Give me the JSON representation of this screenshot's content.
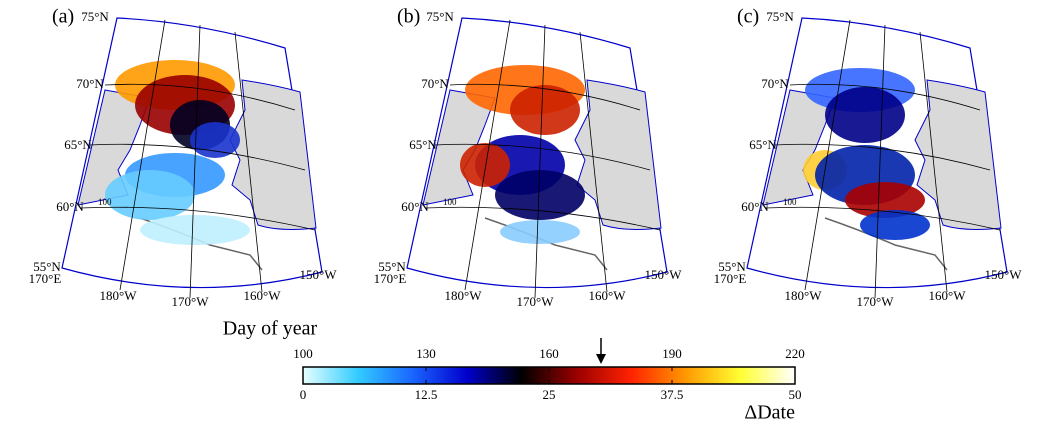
{
  "panels": [
    {
      "label": "(a)"
    },
    {
      "label": "(b)"
    },
    {
      "label": "(c)"
    }
  ],
  "map": {
    "lat_labels": [
      "75°N",
      "70°N",
      "65°N",
      "60°N",
      "55°N"
    ],
    "lon_labels": [
      "170°E",
      "180°W",
      "170°W",
      "160°W",
      "150°W"
    ],
    "contour_label": "100"
  },
  "colorbar": {
    "title": "Day of year",
    "axis_label": "ΔDate",
    "top_range": [
      100,
      220
    ],
    "top_ticks": [
      100,
      130,
      160,
      190,
      220
    ],
    "bottom_range": [
      0,
      50
    ],
    "bottom_ticks": [
      0,
      12.5,
      25,
      37.5,
      50
    ],
    "colors": [
      "#e6ffff",
      "#33ccff",
      "#1a66ff",
      "#0000cc",
      "#000000",
      "#990000",
      "#ff2200",
      "#ff9900",
      "#ffff33",
      "#ffffff"
    ]
  }
}
